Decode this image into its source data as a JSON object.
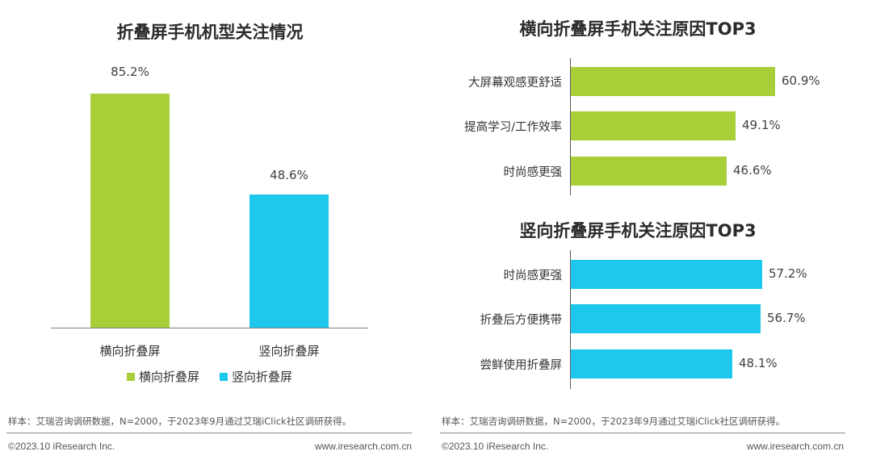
{
  "colors": {
    "green": "#a8cf38",
    "blue": "#1ec8ec"
  },
  "chart_data": [
    {
      "type": "bar",
      "title": "折叠屏手机机型关注情况",
      "categories": [
        "横向折叠屏",
        "竖向折叠屏"
      ],
      "values": [
        85.2,
        48.6
      ],
      "value_labels": [
        "85.2%",
        "48.6%"
      ],
      "ylim": [
        0,
        100
      ],
      "legend": [
        "横向折叠屏",
        "竖向折叠屏"
      ],
      "legend_position": "bottom"
    },
    {
      "type": "bar",
      "orientation": "horizontal",
      "title": "横向折叠屏手机关注原因TOP3",
      "categories": [
        "大屏幕观感更舒适",
        "提高学习/工作效率",
        "时尚感更强"
      ],
      "values": [
        60.9,
        49.1,
        46.6
      ],
      "value_labels": [
        "60.9%",
        "49.1%",
        "46.6%"
      ]
    },
    {
      "type": "bar",
      "orientation": "horizontal",
      "title": "竖向折叠屏手机关注原因TOP3",
      "categories": [
        "时尚感更强",
        "折叠后方便携带",
        "尝鲜使用折叠屏"
      ],
      "values": [
        57.2,
        56.7,
        48.1
      ],
      "value_labels": [
        "57.2%",
        "56.7%",
        "48.1%"
      ]
    }
  ],
  "footer": {
    "left_note": "样本：艾瑞咨询调研数据，N=2000，于2023年9月通过艾瑞iClick社区调研获得。",
    "right_note": "样本：艾瑞咨询调研数据，N=2000，于2023年9月通过艾瑞iClick社区调研获得。",
    "left_copyright": "©2023.10 iResearch Inc.",
    "left_url": "www.iresearch.com.cn",
    "right_copyright": "©2023.10 iResearch Inc.",
    "right_url": "www.iresearch.com.cn"
  }
}
